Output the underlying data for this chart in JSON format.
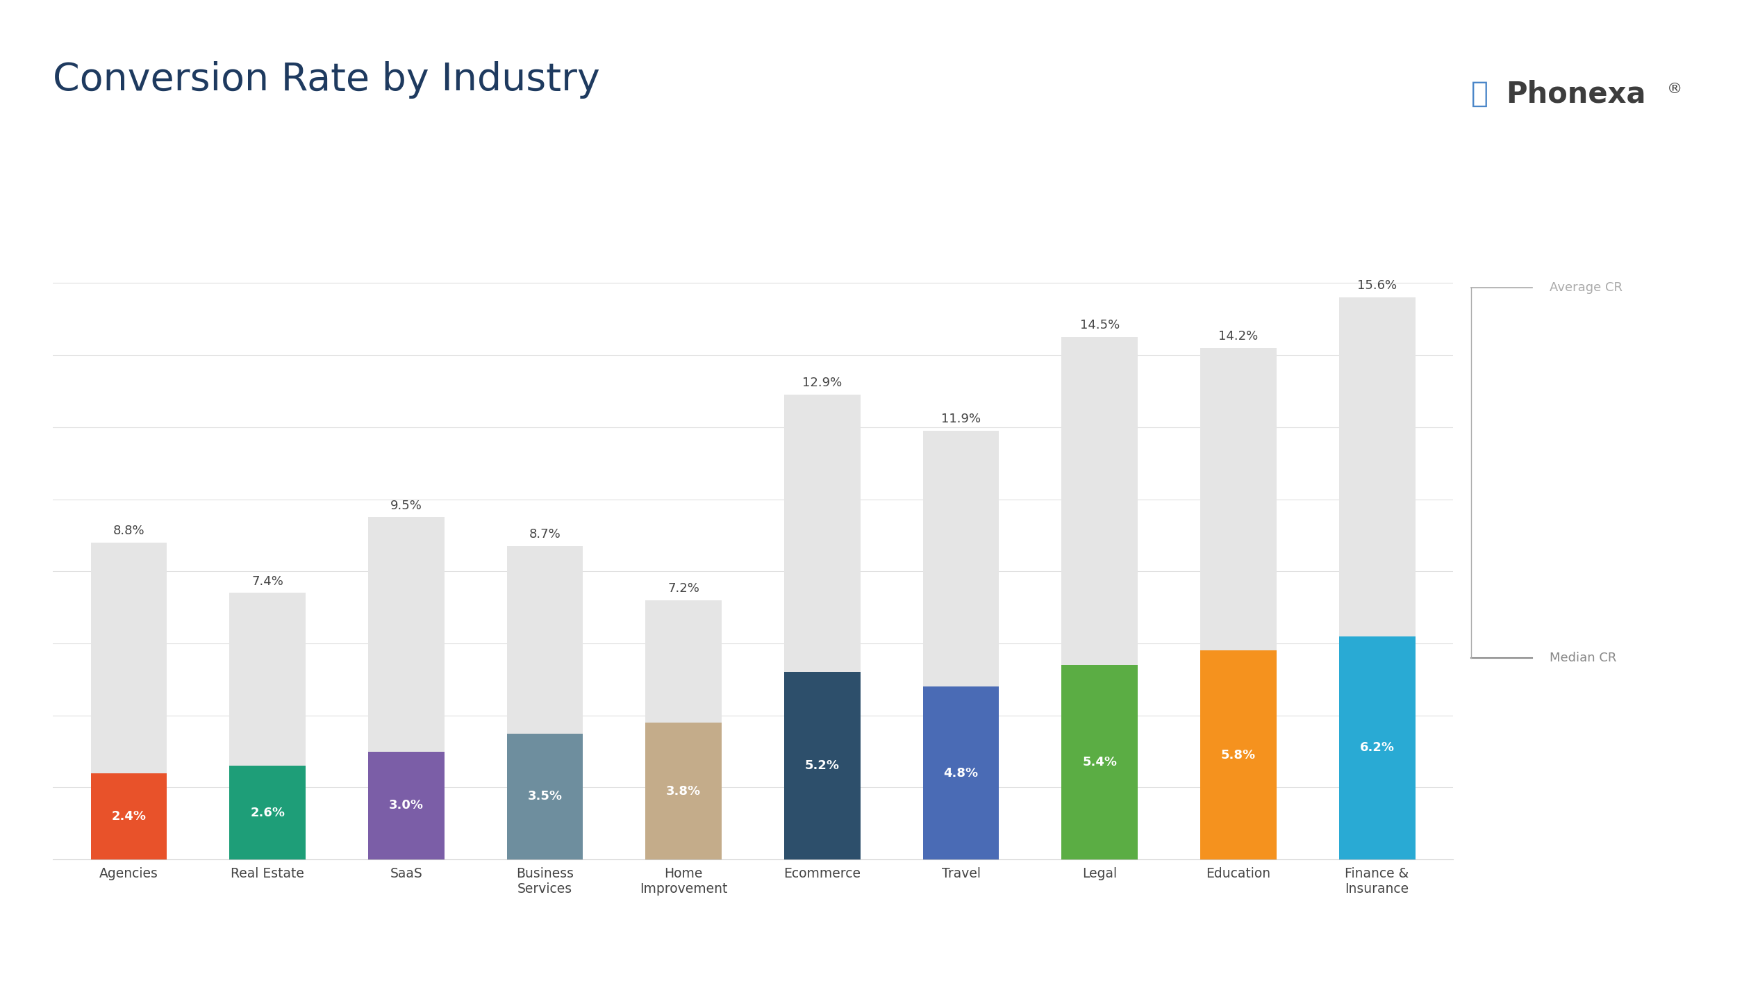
{
  "title": "Conversion Rate by Industry",
  "categories": [
    "Agencies",
    "Real Estate",
    "SaaS",
    "Business\nServices",
    "Home\nImprovement",
    "Ecommerce",
    "Travel",
    "Legal",
    "Education",
    "Finance &\nInsurance"
  ],
  "avg_values": [
    8.8,
    7.4,
    9.5,
    8.7,
    7.2,
    12.9,
    11.9,
    14.5,
    14.2,
    15.6
  ],
  "median_values": [
    2.4,
    2.6,
    3.0,
    3.5,
    3.8,
    5.2,
    4.8,
    5.4,
    5.8,
    6.2
  ],
  "avg_labels": [
    "8.8%",
    "7.4%",
    "9.5%",
    "8.7%",
    "7.2%",
    "12.9%",
    "11.9%",
    "14.5%",
    "14.2%",
    "15.6%"
  ],
  "median_labels": [
    "2.4%",
    "2.6%",
    "3.0%",
    "3.5%",
    "3.8%",
    "5.2%",
    "4.8%",
    "5.4%",
    "5.8%",
    "6.2%"
  ],
  "median_colors": [
    "#E8522A",
    "#1E9E78",
    "#7B5EA7",
    "#6E8E9E",
    "#C4AC8A",
    "#2D4F6B",
    "#4A6BB5",
    "#5BAD44",
    "#F5921E",
    "#29AAD4"
  ],
  "avg_color": "#E5E5E5",
  "background_color": "#FFFFFF",
  "title_color": "#1E3A5F",
  "label_color_dark": "#444444",
  "label_color_white": "#FFFFFF",
  "annotation_avg_cr": "Average CR",
  "annotation_median_cr": "Median CR",
  "ylim_max": 17,
  "grid_color": "#E0E0E0",
  "bar_width": 0.55,
  "phonexa_text": "Phonexa",
  "phonexa_reg": "®",
  "phonexa_color": "#3D3D3D",
  "phonexa_icon_color": "#4A86C8",
  "annot_color_avg": "#AAAAAA",
  "annot_color_median": "#888888"
}
